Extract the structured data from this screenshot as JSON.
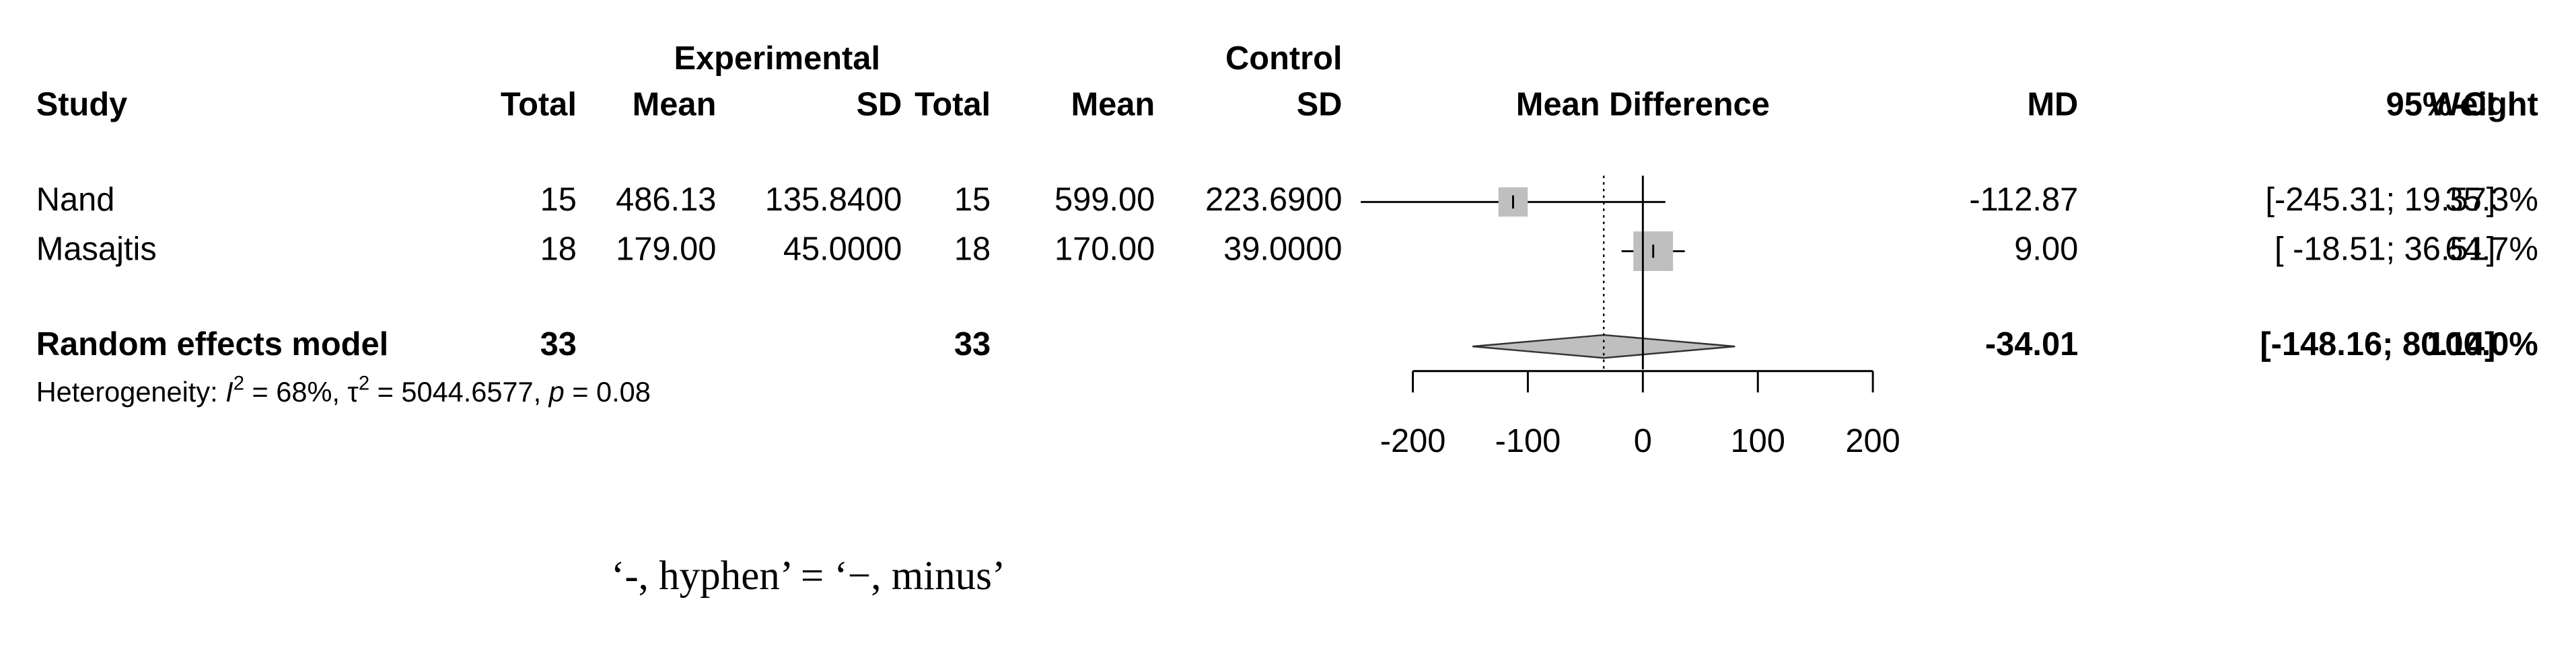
{
  "chart_data": {
    "type": "forest",
    "columns": {
      "study": "Study",
      "exp_group": "Experimental",
      "exp_total": "Total",
      "exp_mean": "Mean",
      "exp_sd": "SD",
      "ctrl_group": "Control",
      "ctrl_total": "Total",
      "ctrl_mean": "Mean",
      "ctrl_sd": "SD",
      "effect": "Mean Difference",
      "md": "MD",
      "ci": "95%-CI",
      "weight": "Weight"
    },
    "studies": [
      {
        "name": "Nand",
        "exp_total": 15,
        "exp_mean": "486.13",
        "exp_sd": "135.8400",
        "ctrl_total": 15,
        "ctrl_mean": "599.00",
        "ctrl_sd": "223.6900",
        "md": {
          "value": -112.87,
          "label": "-112.87"
        },
        "ci": {
          "lower": -245.31,
          "upper": 19.57,
          "label": "[-245.31; 19.57]"
        },
        "weight": {
          "value": 35.3,
          "label": "35.3%"
        }
      },
      {
        "name": "Masajtis",
        "exp_total": 18,
        "exp_mean": "179.00",
        "exp_sd": "45.0000",
        "ctrl_total": 18,
        "ctrl_mean": "170.00",
        "ctrl_sd": "39.0000",
        "md": {
          "value": 9,
          "label": "9.00"
        },
        "ci": {
          "lower": -18.51,
          "upper": 36.51,
          "label": "[ -18.51; 36.51]"
        },
        "weight": {
          "value": 64.7,
          "label": "64.7%"
        }
      }
    ],
    "pooled": {
      "name": "Random effects model",
      "exp_total": 33,
      "ctrl_total": 33,
      "md": {
        "value": -34.01,
        "label": "-34.01"
      },
      "ci": {
        "lower": -148.16,
        "upper": 80.14,
        "label": "[-148.16; 80.14]"
      },
      "weight": {
        "value": 100,
        "label": "100.0%"
      }
    },
    "heterogeneity": [
      "Heterogeneity: ",
      "I",
      "2",
      " = 68%, ",
      "τ",
      "2",
      " = 5044.6577, ",
      "p",
      " = 0.08"
    ],
    "xlim": [
      -200,
      200
    ],
    "xticks": [
      -200,
      -100,
      0,
      100,
      200
    ],
    "box_color": "#bfbfbf",
    "diamond_color": "#bfbfbf",
    "caption": "‘-, hyphen’ = ‘−, minus’"
  }
}
